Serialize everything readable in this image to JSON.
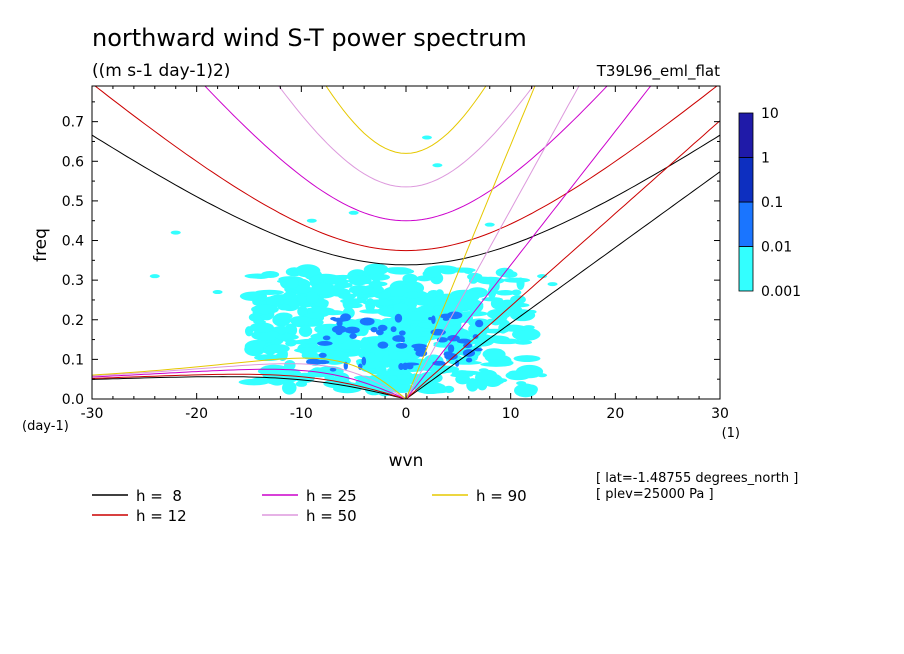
{
  "chart_data": {
    "type": "contour",
    "title": "northward wind S-T power spectrum",
    "subtitle": "((m s-1 day-1)2)",
    "run_label": "T39L96_eml_flat",
    "xlabel": "wvn",
    "ylabel": "freq",
    "x_unit": "(1)",
    "y_unit": "(day-1)",
    "xlim": [
      -30,
      30
    ],
    "ylim": [
      0,
      0.79
    ],
    "x_ticks": [
      -30,
      -20,
      -10,
      0,
      10,
      20,
      30
    ],
    "y_ticks": [
      0.0,
      0.1,
      0.2,
      0.3,
      0.4,
      0.5,
      0.6,
      0.7
    ],
    "x_tick_labels": [
      "-30",
      "-20",
      "-10",
      "0",
      "10",
      "20",
      "30"
    ],
    "y_tick_labels": [
      "0.0",
      "0.1",
      "0.2",
      "0.3",
      "0.4",
      "0.5",
      "0.6",
      "0.7"
    ],
    "colorbar": {
      "levels": [
        "0.001",
        "0.01",
        "0.1",
        "1",
        "10"
      ],
      "colors": [
        "#33ffff",
        "#1a75ff",
        "#0d2fc0",
        "#1f1aa8"
      ]
    },
    "shaded_regions": [
      {
        "level": "0.001",
        "x": [
          -15,
          12
        ],
        "y": [
          0.02,
          0.33
        ],
        "note_free": true
      },
      {
        "level": "0.01",
        "x": [
          -10,
          8
        ],
        "y": [
          0.06,
          0.24
        ]
      }
    ],
    "dispersion_curves": [
      {
        "name": "h =  8",
        "h": 8,
        "color": "#000000"
      },
      {
        "name": "h = 12",
        "h": 12,
        "color": "#cc0000"
      },
      {
        "name": "h = 25",
        "h": 25,
        "color": "#cc00cc"
      },
      {
        "name": "h = 50",
        "h": 50,
        "color": "#dd99dd"
      },
      {
        "name": "h = 90",
        "h": 90,
        "color": "#e6c800"
      }
    ],
    "annotations": [
      "[ lat=-1.48755 degrees_north ]",
      "[ plev=25000 Pa ]"
    ]
  }
}
